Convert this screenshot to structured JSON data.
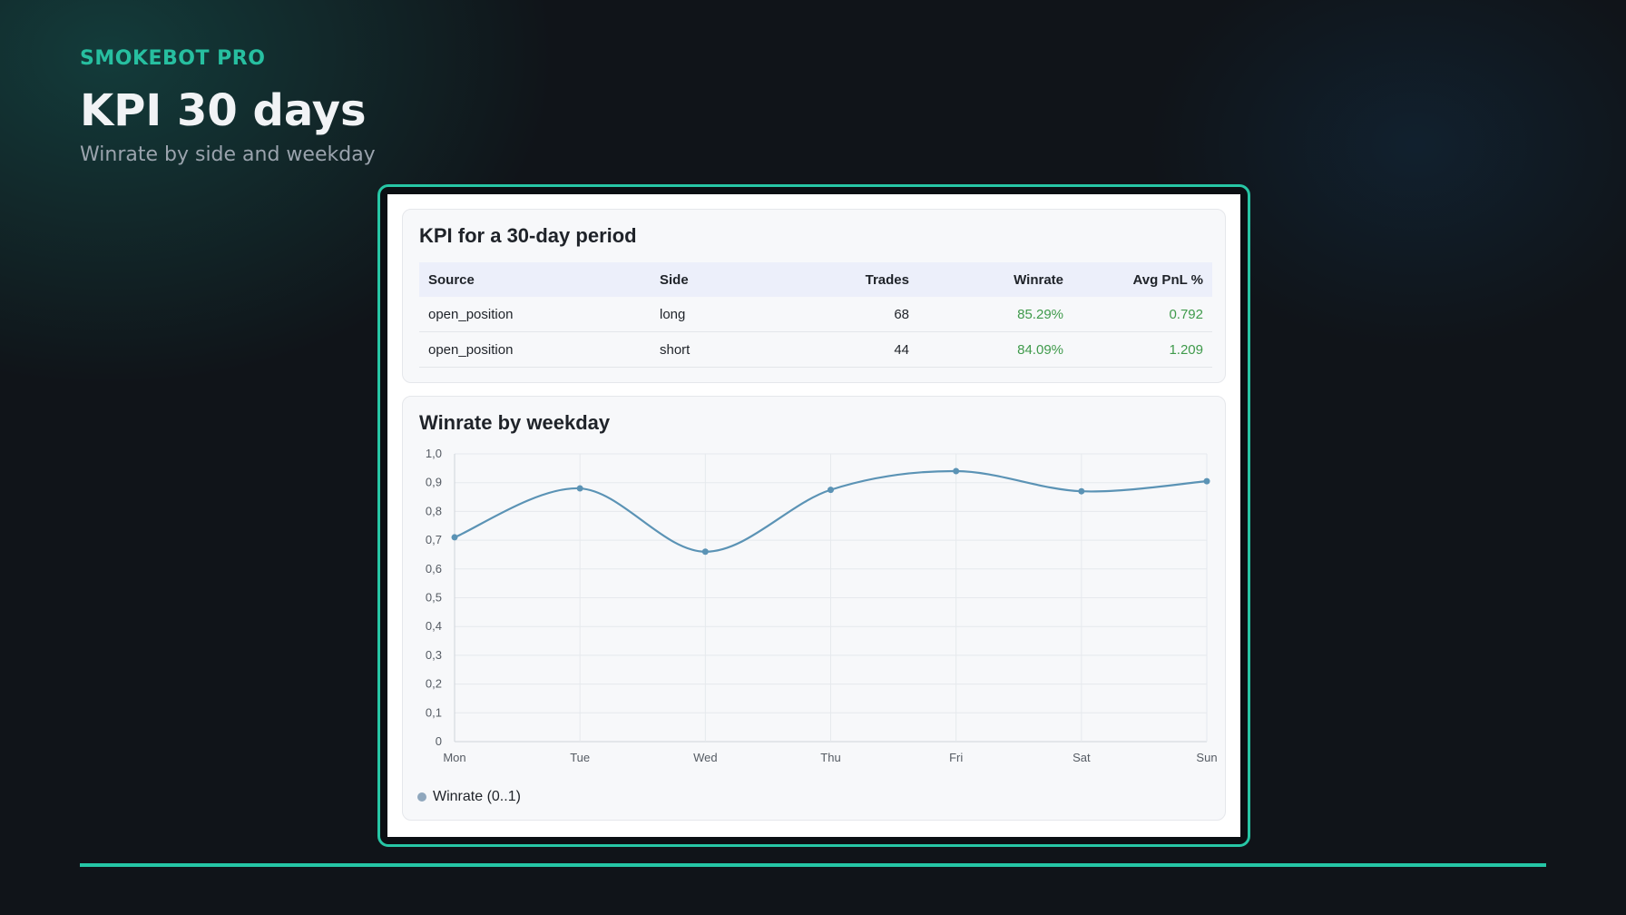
{
  "header": {
    "brand": "SMOKEBOT PRO",
    "title": "KPI 30 days",
    "subtitle": "Winrate by side and weekday"
  },
  "kpi_card": {
    "title": "KPI for a 30-day period",
    "columns": [
      "Source",
      "Side",
      "Trades",
      "Winrate",
      "Avg PnL %"
    ],
    "rows": [
      {
        "source": "open_position",
        "side": "long",
        "trades": "68",
        "winrate": "85.29%",
        "avg_pnl": "0.792"
      },
      {
        "source": "open_position",
        "side": "short",
        "trades": "44",
        "winrate": "84.09%",
        "avg_pnl": "1.209"
      }
    ]
  },
  "chart_card": {
    "title": "Winrate by weekday",
    "legend_label": "Winrate (0..1)"
  },
  "colors": {
    "accent": "#27bfa0",
    "line": "#5b93b5",
    "positive": "#3f9a4b"
  },
  "chart_data": {
    "type": "line",
    "title": "Winrate by weekday",
    "categories": [
      "Mon",
      "Tue",
      "Wed",
      "Thu",
      "Fri",
      "Sat",
      "Sun"
    ],
    "series": [
      {
        "name": "Winrate (0..1)",
        "values": [
          0.71,
          0.88,
          0.66,
          0.875,
          0.94,
          0.87,
          0.905
        ]
      }
    ],
    "ylim": [
      0,
      1.0
    ],
    "yticks": [
      "0",
      "0,1",
      "0,2",
      "0,3",
      "0,4",
      "0,5",
      "0,6",
      "0,7",
      "0,8",
      "0,9",
      "1,0"
    ],
    "grid": true,
    "legend": "bottom-left"
  }
}
